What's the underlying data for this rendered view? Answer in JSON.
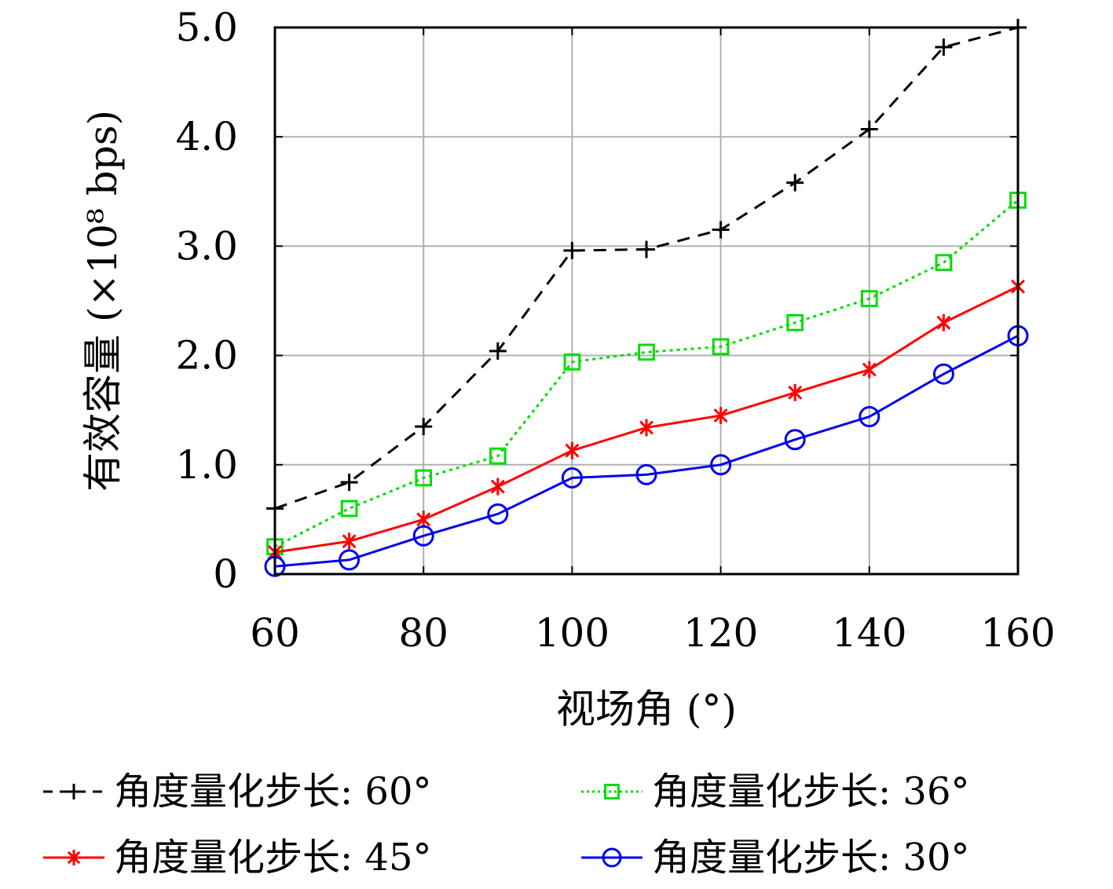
{
  "chart_data": {
    "type": "line",
    "xlabel": "视场角 (°)",
    "ylabel": "有效容量 (×10⁸ bps)",
    "xlim": [
      60,
      160
    ],
    "ylim": [
      0,
      5
    ],
    "x_ticks": [
      "60",
      "80",
      "100",
      "120",
      "140",
      "160"
    ],
    "y_ticks": [
      "0",
      "1.0",
      "2.0",
      "3.0",
      "4.0",
      "5.0"
    ],
    "grid": true,
    "legend_position": "bottom",
    "x": [
      60,
      70,
      80,
      90,
      100,
      110,
      120,
      130,
      140,
      150,
      160
    ],
    "series": [
      {
        "name": "角度量化步长: 60°",
        "color": "#000000",
        "marker": "plus",
        "line_style": "dashed",
        "values": [
          0.6,
          0.84,
          1.35,
          2.04,
          2.96,
          2.97,
          3.15,
          3.58,
          4.07,
          4.82,
          5.0
        ]
      },
      {
        "name": "角度量化步长: 36°",
        "color": "#00dd00",
        "marker": "square",
        "line_style": "dotted",
        "values": [
          0.25,
          0.6,
          0.88,
          1.08,
          1.94,
          2.03,
          2.08,
          2.3,
          2.52,
          2.85,
          3.42
        ]
      },
      {
        "name": "角度量化步长: 45°",
        "color": "#ff0000",
        "marker": "asterisk",
        "line_style": "solid",
        "values": [
          0.2,
          0.3,
          0.5,
          0.8,
          1.13,
          1.34,
          1.45,
          1.66,
          1.87,
          2.3,
          2.63
        ]
      },
      {
        "name": "角度量化步长: 30°",
        "color": "#0000ee",
        "marker": "circle",
        "line_style": "solid",
        "values": [
          0.07,
          0.13,
          0.35,
          0.55,
          0.88,
          0.91,
          1.0,
          1.23,
          1.44,
          1.83,
          2.18
        ]
      }
    ]
  }
}
